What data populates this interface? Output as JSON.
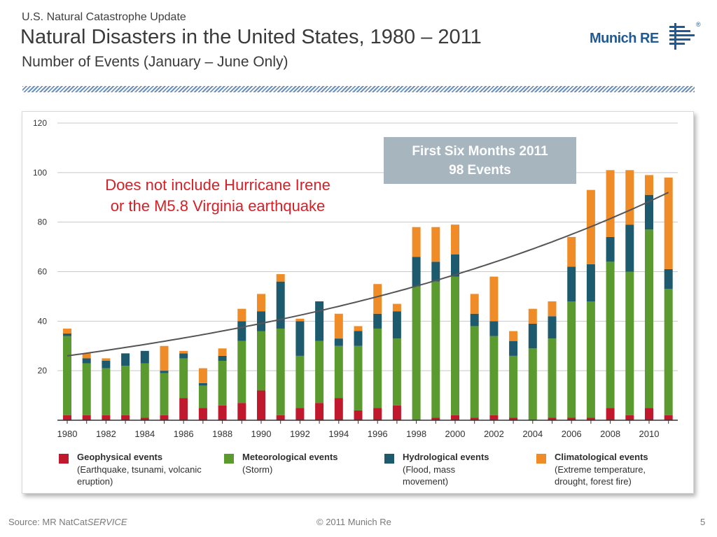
{
  "header": {
    "kicker": "U.S. Natural Catastrophe Update",
    "title": "Natural Disasters in the United States, 1980 – 2011",
    "subtitle": "Number of Events (January – June Only)"
  },
  "logo": {
    "text": "Munich RE",
    "reg": "®",
    "color": "#1f5a96"
  },
  "callout": {
    "line1": "First Six Months 2011",
    "line2": "98 Events"
  },
  "note": {
    "line1": "Does not include Hurricane Irene",
    "line2": "or the M5.8 Virginia earthquake"
  },
  "legend": [
    {
      "title": "Geophysical events",
      "desc": "(Earthquake, tsunami, volcanic eruption)",
      "color": "#c0182c"
    },
    {
      "title": "Meteorological events",
      "desc": "(Storm)",
      "color": "#5b9a2f"
    },
    {
      "title": "Hydrological events",
      "desc": "(Flood, mass movement)",
      "color": "#1e5a6e"
    },
    {
      "title": "Climatological events",
      "desc": "(Extreme temperature, drought, forest fire)",
      "color": "#f08c28"
    }
  ],
  "footer": {
    "source_prefix": "Source: MR NatCat",
    "source_suffix": "SERVICE",
    "copyright": "© 2011 Munich Re",
    "page": "5"
  },
  "chart_data": {
    "type": "bar",
    "stacked": true,
    "categories": [
      1980,
      1981,
      1982,
      1983,
      1984,
      1985,
      1986,
      1987,
      1988,
      1989,
      1990,
      1991,
      1992,
      1993,
      1994,
      1995,
      1996,
      1997,
      1998,
      1999,
      2000,
      2001,
      2002,
      2003,
      2004,
      2005,
      2006,
      2007,
      2008,
      2009,
      2010,
      2011
    ],
    "x_tick_labels": [
      "1980",
      "1982",
      "1984",
      "1986",
      "1988",
      "1990",
      "1992",
      "1994",
      "1996",
      "1998",
      "2000",
      "2002",
      "2004",
      "2006",
      "2008",
      "2010"
    ],
    "y_ticks": [
      20,
      40,
      60,
      80,
      100,
      120
    ],
    "ylim": [
      0,
      120
    ],
    "grid": true,
    "series": [
      {
        "name": "Geophysical events",
        "color": "#c0182c",
        "values": [
          2,
          2,
          2,
          2,
          1,
          2,
          9,
          5,
          6,
          7,
          12,
          2,
          5,
          7,
          9,
          4,
          5,
          6,
          0,
          1,
          2,
          1,
          2,
          1,
          0,
          1,
          1,
          1,
          5,
          2,
          5,
          2
        ]
      },
      {
        "name": "Meteorological events",
        "color": "#5b9a2f",
        "values": [
          32,
          21,
          19,
          20,
          22,
          17,
          16,
          9,
          18,
          25,
          24,
          35,
          21,
          25,
          21,
          26,
          32,
          27,
          54,
          55,
          56,
          37,
          32,
          25,
          29,
          32,
          47,
          47,
          59,
          58,
          72,
          51
        ]
      },
      {
        "name": "Hydrological events",
        "color": "#1e5a6e",
        "values": [
          1,
          2,
          3,
          5,
          5,
          1,
          2,
          1,
          2,
          8,
          8,
          19,
          14,
          16,
          3,
          6,
          6,
          11,
          12,
          8,
          9,
          5,
          6,
          6,
          10,
          9,
          14,
          15,
          10,
          19,
          14,
          8
        ]
      },
      {
        "name": "Climatological events",
        "color": "#f08c28",
        "values": [
          2,
          2,
          1,
          0,
          0,
          10,
          1,
          6,
          3,
          5,
          7,
          3,
          1,
          0,
          10,
          2,
          12,
          3,
          12,
          14,
          12,
          8,
          18,
          4,
          6,
          6,
          12,
          30,
          27,
          22,
          8,
          37
        ]
      }
    ],
    "trend": {
      "type": "exponential",
      "start": 26,
      "end": 92,
      "color": "#555555"
    }
  }
}
